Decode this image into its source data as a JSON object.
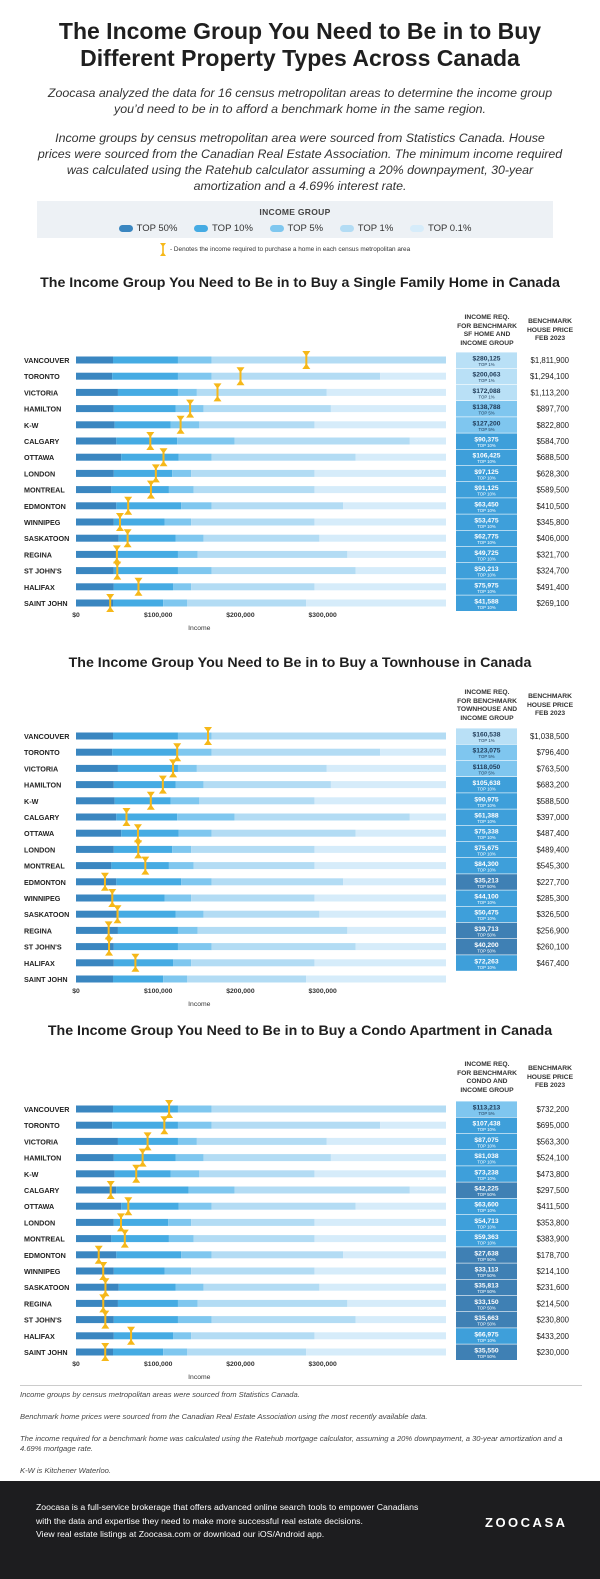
{
  "page": {
    "title_line1": "The Income Group You Need to Be in to Buy",
    "title_line2": "Different Property Types Across Canada",
    "intro1_line1": "Zoocasa analyzed the data for 16 census metropolitan areas to determine the income group",
    "intro1_line2": "you’d need to be in to afford a benchmark home in the same region.",
    "intro2_line1": "Income groups by census metropolitan area were sourced from Statistics Canada. House",
    "intro2_line2": "prices were sourced from the Canadian Real Estate Association. The minimum income required",
    "intro2_line3": "was calculated using the Ratehub calculator assuming a 20% downpayment, 30-year",
    "intro2_line4": "amortization and a 4.69% interest rate."
  },
  "legend": {
    "title": "INCOME GROUP",
    "items": [
      {
        "label": "TOP 50%",
        "color": "#3a86c0"
      },
      {
        "label": "TOP 10%",
        "color": "#45abe3"
      },
      {
        "label": "TOP 5%",
        "color": "#7fc7ef"
      },
      {
        "label": "TOP 1%",
        "color": "#b3dcf4"
      },
      {
        "label": "TOP 0.1%",
        "color": "#d6ecfa"
      }
    ],
    "marker_note": "- Denotes the income required to purchase a home in each census metropolitan area",
    "marker_color": "#f6b819"
  },
  "sections": [
    {
      "title": "The Income Group You Need to Be in to Buy a Single Family Home in Canada",
      "col1": [
        "INCOME REQ.",
        "FOR BENCHMARK",
        "SF HOME AND",
        "INCOME GROUP"
      ],
      "col2": [
        "BENCHMARK",
        "HOUSE PRICE",
        "FEB 2023"
      ]
    },
    {
      "title": "The Income Group You Need to Be in to Buy a Townhouse in Canada",
      "col1": [
        "INCOME REQ.",
        "FOR BENCHMARK",
        "TOWNHOUSE AND",
        "INCOME GROUP"
      ],
      "col2": [
        "BENCHMARK",
        "HOUSE PRICE",
        "FEB 2023"
      ]
    },
    {
      "title": "The Income Group You Need to Be in to Buy a Condo Apartment in Canada",
      "col1": [
        "INCOME REQ.",
        "FOR BENCHMARK",
        "CONDO AND",
        "INCOME GROUP"
      ],
      "col2": [
        "BENCHMARK",
        "HOUSE PRICE",
        "FEB 2023"
      ]
    }
  ],
  "chart_data": [
    {
      "type": "bar",
      "title": "The Income Group You Need to Be in to Buy a Single Family Home in Canada",
      "xlabel": "Income",
      "xlim": [
        0,
        450000
      ],
      "xticks": [
        "$0",
        "$100,000",
        "$200,000",
        "$300,000"
      ],
      "categories": [
        "VANCOUVER",
        "TORONTO",
        "VICTORIA",
        "HAMILTON",
        "K-W",
        "CALGARY",
        "OTTAWA",
        "LONDON",
        "MONTREAL",
        "EDMONTON",
        "WINNIPEG",
        "SASKATOON",
        "REGINA",
        "ST JOHN'S",
        "HALIFAX",
        "SAINT JOHN"
      ],
      "thresholds": [
        [
          45000,
          124000,
          165000,
          450000,
          450000
        ],
        [
          44000,
          124000,
          165000,
          370000,
          450000
        ],
        [
          51000,
          124000,
          147000,
          305000,
          450000
        ],
        [
          46000,
          121000,
          155000,
          310000,
          450000
        ],
        [
          47000,
          115000,
          150000,
          290000,
          450000
        ],
        [
          49000,
          123000,
          193000,
          406000,
          450000
        ],
        [
          55000,
          125000,
          165000,
          340000,
          450000
        ],
        [
          46000,
          117000,
          140000,
          290000,
          450000
        ],
        [
          43000,
          113000,
          143000,
          290000,
          450000
        ],
        [
          49000,
          128000,
          165000,
          325000,
          450000
        ],
        [
          46000,
          108000,
          140000,
          290000,
          450000
        ],
        [
          52000,
          121000,
          155000,
          296000,
          450000
        ],
        [
          51000,
          124000,
          148000,
          330000,
          450000
        ],
        [
          46000,
          124000,
          165000,
          340000,
          450000
        ],
        [
          46000,
          118000,
          140000,
          290000,
          450000
        ],
        [
          45000,
          106000,
          135000,
          280000,
          450000
        ]
      ],
      "income_req": [
        "$280,125",
        "$200,063",
        "$172,088",
        "$138,788",
        "$127,200",
        "$90,375",
        "$106,425",
        "$97,125",
        "$91,125",
        "$63,450",
        "$53,475",
        "$62,775",
        "$49,725",
        "$50,213",
        "$75,975",
        "$41,588"
      ],
      "income_req_values": [
        280125,
        200063,
        172088,
        138788,
        127200,
        90375,
        106425,
        97125,
        91125,
        63450,
        53475,
        62775,
        49725,
        50213,
        75975,
        41588
      ],
      "group": [
        "TOP 1%",
        "TOP 1%",
        "TOP 1%",
        "TOP 5%",
        "TOP 5%",
        "TOP 10%",
        "TOP 10%",
        "TOP 10%",
        "TOP 10%",
        "TOP 10%",
        "TOP 10%",
        "TOP 10%",
        "TOP 10%",
        "TOP 10%",
        "TOP 10%",
        "TOP 10%"
      ],
      "prices": [
        "$1,811,900",
        "$1,294,100",
        "$1,113,200",
        "$897,700",
        "$822,800",
        "$584,700",
        "$688,500",
        "$628,300",
        "$589,500",
        "$410,500",
        "$345,800",
        "$406,000",
        "$321,700",
        "$324,700",
        "$491,400",
        "$269,100"
      ]
    },
    {
      "type": "bar",
      "title": "The Income Group You Need to Be in to Buy a Townhouse in Canada",
      "xlabel": "Income",
      "xlim": [
        0,
        450000
      ],
      "xticks": [
        "$0",
        "$100,000",
        "$200,000",
        "$300,000"
      ],
      "categories": [
        "VANCOUVER",
        "TORONTO",
        "VICTORIA",
        "HAMILTON",
        "K-W",
        "CALGARY",
        "OTTAWA",
        "LONDON",
        "MONTREAL",
        "EDMONTON",
        "WINNIPEG",
        "SASKATOON",
        "REGINA",
        "ST JOHN'S",
        "HALIFAX",
        "SAINT JOHN"
      ],
      "thresholds": [
        [
          45000,
          124000,
          165000,
          450000,
          450000
        ],
        [
          44000,
          124000,
          165000,
          370000,
          450000
        ],
        [
          51000,
          124000,
          147000,
          305000,
          450000
        ],
        [
          46000,
          121000,
          155000,
          310000,
          450000
        ],
        [
          47000,
          115000,
          150000,
          290000,
          450000
        ],
        [
          49000,
          123000,
          193000,
          406000,
          450000
        ],
        [
          55000,
          125000,
          165000,
          340000,
          450000
        ],
        [
          46000,
          117000,
          140000,
          290000,
          450000
        ],
        [
          43000,
          113000,
          143000,
          290000,
          450000
        ],
        [
          49000,
          128000,
          165000,
          325000,
          450000
        ],
        [
          46000,
          108000,
          140000,
          290000,
          450000
        ],
        [
          52000,
          121000,
          155000,
          296000,
          450000
        ],
        [
          51000,
          124000,
          148000,
          330000,
          450000
        ],
        [
          46000,
          124000,
          165000,
          340000,
          450000
        ],
        [
          46000,
          118000,
          140000,
          290000,
          450000
        ],
        [
          45000,
          106000,
          135000,
          280000,
          450000
        ]
      ],
      "income_req": [
        "$160,538",
        "$123,075",
        "$118,050",
        "$105,638",
        "$90,975",
        "$61,388",
        "$75,338",
        "$75,675",
        "$84,300",
        "$35,213",
        "$44,100",
        "$50,475",
        "$39,713",
        "$40,200",
        "$72,263",
        ""
      ],
      "income_req_values": [
        160538,
        123075,
        118050,
        105638,
        90975,
        61388,
        75338,
        75675,
        84300,
        35213,
        44100,
        50475,
        39713,
        40200,
        72263,
        null
      ],
      "group": [
        "TOP 1%",
        "TOP 5%",
        "TOP 5%",
        "TOP 10%",
        "TOP 10%",
        "TOP 10%",
        "TOP 10%",
        "TOP 10%",
        "TOP 10%",
        "TOP 50%",
        "TOP 10%",
        "TOP 10%",
        "TOP 50%",
        "TOP 50%",
        "TOP 10%",
        ""
      ],
      "prices": [
        "$1,038,500",
        "$796,400",
        "$763,500",
        "$683,200",
        "$588,500",
        "$397,000",
        "$487,400",
        "$489,400",
        "$545,300",
        "$227,700",
        "$285,300",
        "$326,500",
        "$256,900",
        "$260,100",
        "$467,400",
        ""
      ]
    },
    {
      "type": "bar",
      "title": "The Income Group You Need to Be in to Buy a Condo Apartment in Canada",
      "xlabel": "Income",
      "xlim": [
        0,
        450000
      ],
      "xticks": [
        "$0",
        "$100,000",
        "$200,000",
        "$300,000"
      ],
      "categories": [
        "VANCOUVER",
        "TORONTO",
        "VICTORIA",
        "HAMILTON",
        "K-W",
        "CALGARY",
        "OTTAWA",
        "LONDON",
        "MONTREAL",
        "EDMONTON",
        "WINNIPEG",
        "SASKATOON",
        "REGINA",
        "ST JOHN'S",
        "HALIFAX",
        "SAINT JOHN"
      ],
      "thresholds": [
        [
          45000,
          124000,
          165000,
          450000,
          450000
        ],
        [
          44000,
          124000,
          165000,
          370000,
          450000
        ],
        [
          51000,
          124000,
          147000,
          305000,
          450000
        ],
        [
          46000,
          121000,
          155000,
          310000,
          450000
        ],
        [
          47000,
          115000,
          150000,
          290000,
          450000
        ],
        [
          49000,
          137000,
          193000,
          406000,
          450000
        ],
        [
          55000,
          125000,
          165000,
          340000,
          450000
        ],
        [
          46000,
          112000,
          140000,
          290000,
          450000
        ],
        [
          43000,
          113000,
          143000,
          290000,
          450000
        ],
        [
          49000,
          128000,
          165000,
          325000,
          450000
        ],
        [
          46000,
          108000,
          140000,
          290000,
          450000
        ],
        [
          52000,
          121000,
          155000,
          296000,
          450000
        ],
        [
          51000,
          124000,
          148000,
          330000,
          450000
        ],
        [
          46000,
          124000,
          165000,
          340000,
          450000
        ],
        [
          46000,
          118000,
          140000,
          290000,
          450000
        ],
        [
          45000,
          106000,
          135000,
          280000,
          450000
        ]
      ],
      "income_req": [
        "$113,213",
        "$107,438",
        "$87,075",
        "$81,038",
        "$73,238",
        "$42,225",
        "$63,600",
        "$54,713",
        "$59,363",
        "$27,638",
        "$33,113",
        "$35,813",
        "$33,150",
        "$35,663",
        "$66,975",
        "$35,550"
      ],
      "income_req_values": [
        113213,
        107438,
        87075,
        81038,
        73238,
        42225,
        63600,
        54713,
        59363,
        27638,
        33113,
        35813,
        33150,
        35663,
        66975,
        35550
      ],
      "group": [
        "TOP 5%",
        "TOP 10%",
        "TOP 10%",
        "TOP 10%",
        "TOP 10%",
        "TOP 50%",
        "TOP 10%",
        "TOP 10%",
        "TOP 10%",
        "TOP 50%",
        "TOP 50%",
        "TOP 50%",
        "TOP 50%",
        "TOP 50%",
        "TOP 10%",
        "TOP 50%"
      ],
      "prices": [
        "$732,200",
        "$695,000",
        "$563,300",
        "$524,100",
        "$473,800",
        "$297,500",
        "$411,500",
        "$353,800",
        "$383,900",
        "$178,700",
        "$214,100",
        "$231,600",
        "$214,500",
        "$230,800",
        "$433,200",
        "$230,000"
      ]
    }
  ],
  "footnotes": [
    "Income groups by census metropolitan areas were sourced from Statistics Canada.",
    "Benchmark home prices were sourced from the Canadian Real Estate Association using the most recently available data.",
    "The income required for a benchmark home was calculated using the Ratehub mortgage calculator, assuming a 20% downpayment, a 30-year amortization and a 4.69% mortgage rate.",
    "K-W is Kitchener Waterloo."
  ],
  "footer": {
    "line1": "Zoocasa is a full-service brokerage that offers advanced online search tools to empower Canadians",
    "line2": "with the data and expertise they need to make more successful real estate decisions.",
    "line3": "View real estate listings at Zoocasa.com or download our iOS/Android app.",
    "logo": "ZOOCASA"
  },
  "group_colors": {
    "TOP 50%": "#3a86c0",
    "TOP 10%": "#45abe3",
    "TOP 5%": "#7fc7ef",
    "TOP 1%": "#b3dcf4",
    "TOP 0.1%": "#d6ecfa"
  },
  "box_colors": {
    "TOP 50%": "#3f80b4",
    "TOP 10%": "#3e9fda",
    "TOP 5%": "#7fc6ef",
    "TOP 1%": "#b9e0f6"
  }
}
